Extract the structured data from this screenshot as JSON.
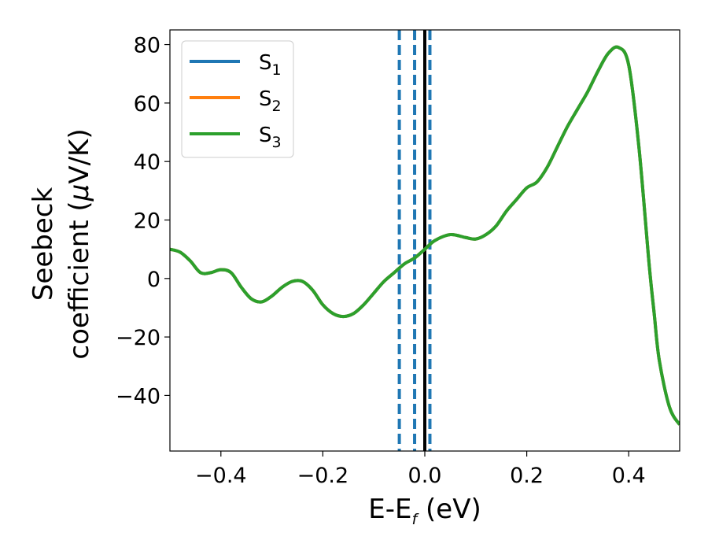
{
  "chart_data": {
    "type": "line",
    "xlabel_main": "E-E",
    "xlabel_sub": "f",
    "xlabel_unit": " (eV)",
    "ylabel_line1": "Seebeck",
    "ylabel_line2_text": "coefficient  (",
    "ylabel_line2_mu": "μ",
    "ylabel_line2_unit": "V/K)",
    "xlim": [
      -0.5,
      0.5
    ],
    "ylim": [
      -59,
      85
    ],
    "xticks": [
      -0.4,
      -0.2,
      0.0,
      0.2,
      0.4
    ],
    "xtick_labels": [
      "−0.4",
      "−0.2",
      "0.0",
      "0.2",
      "0.4"
    ],
    "yticks": [
      -40,
      -20,
      0,
      20,
      40,
      60,
      80
    ],
    "ytick_labels": [
      "−40",
      "−20",
      "0",
      "20",
      "40",
      "60",
      "80"
    ],
    "legend_position": "top-left",
    "grid": false,
    "series": [
      {
        "name_main": "S",
        "name_sub": "1",
        "color": "#1f77b4"
      },
      {
        "name_main": "S",
        "name_sub": "2",
        "color": "#ff7f0e"
      },
      {
        "name_main": "S",
        "name_sub": "3",
        "color": "#2ca02c"
      }
    ],
    "x": [
      -0.5,
      -0.48,
      -0.46,
      -0.44,
      -0.42,
      -0.4,
      -0.38,
      -0.36,
      -0.34,
      -0.32,
      -0.3,
      -0.28,
      -0.26,
      -0.24,
      -0.22,
      -0.2,
      -0.18,
      -0.16,
      -0.14,
      -0.12,
      -0.1,
      -0.08,
      -0.06,
      -0.04,
      -0.02,
      0.0,
      0.02,
      0.05,
      0.08,
      0.1,
      0.12,
      0.14,
      0.16,
      0.18,
      0.2,
      0.22,
      0.24,
      0.26,
      0.28,
      0.3,
      0.32,
      0.34,
      0.36,
      0.38,
      0.4,
      0.42,
      0.44,
      0.45,
      0.46,
      0.48,
      0.5
    ],
    "y": [
      10,
      9,
      6,
      2,
      2,
      3,
      2,
      -3,
      -7,
      -8,
      -6,
      -3,
      -1,
      -1,
      -4,
      -9,
      -12,
      -13,
      -12,
      -9,
      -5,
      -1,
      2,
      5,
      7,
      10,
      13,
      15,
      14,
      13.5,
      15,
      18,
      23,
      27,
      31,
      33,
      38,
      45,
      52,
      58,
      64,
      71,
      77,
      79,
      73,
      45,
      5,
      -12,
      -28,
      -44,
      -50
    ],
    "vlines": [
      {
        "x": -0.05,
        "style": "dashed",
        "color": "#1f77b4"
      },
      {
        "x": -0.02,
        "style": "dashed",
        "color": "#1f77b4"
      },
      {
        "x": 0.01,
        "style": "dashed",
        "color": "#1f77b4"
      },
      {
        "x": 0.0,
        "style": "solid",
        "color": "#000000"
      }
    ]
  }
}
